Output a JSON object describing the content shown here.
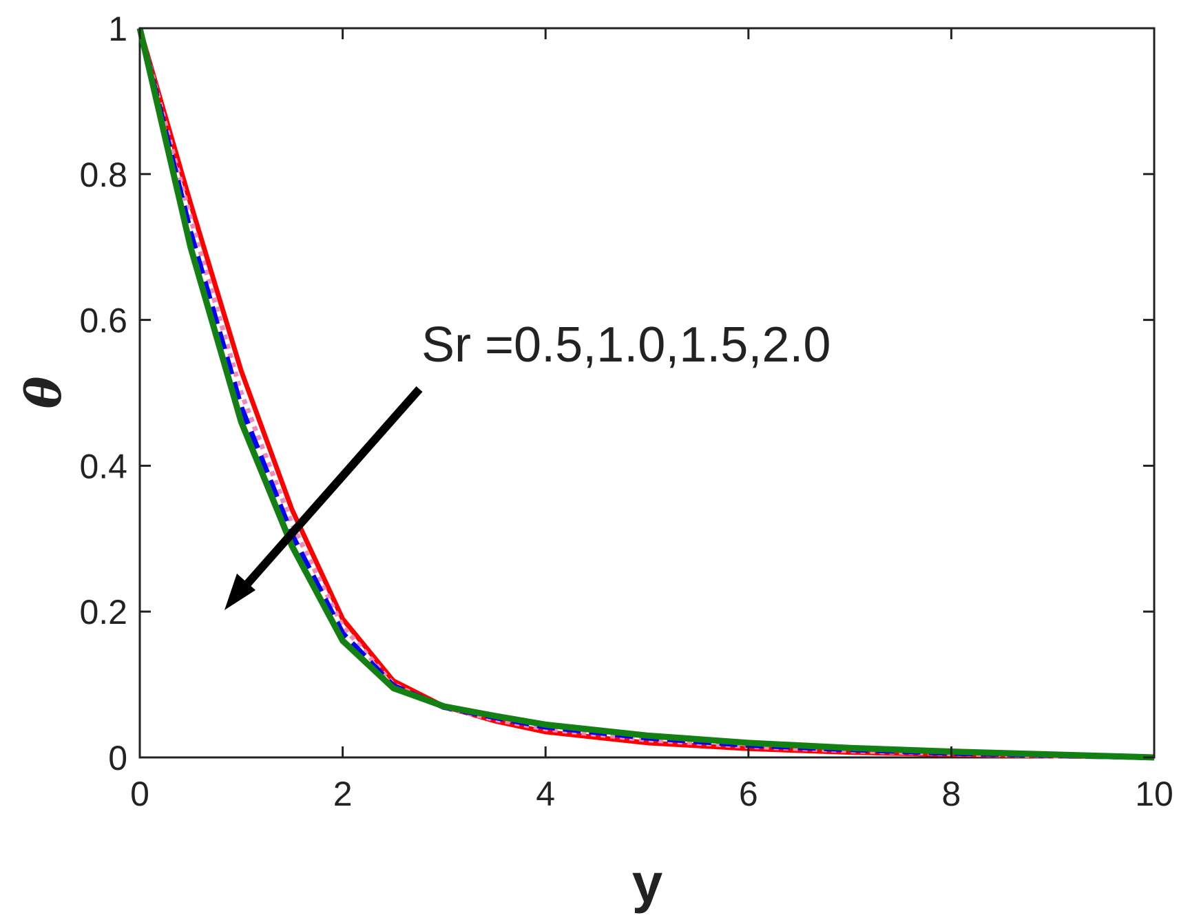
{
  "chart_data": {
    "type": "line",
    "x": [
      0,
      0.5,
      1,
      1.5,
      2,
      2.5,
      3,
      3.5,
      4,
      5,
      6,
      7,
      8,
      9,
      10
    ],
    "series": [
      {
        "color": "#ff0000",
        "style": "solid",
        "values": [
          1,
          0.76,
          0.53,
          0.34,
          0.19,
          0.105,
          0.07,
          0.05,
          0.035,
          0.02,
          0.012,
          0.007,
          0.004,
          0.002,
          0
        ]
      },
      {
        "color": "#f08ab8",
        "style": "dotted",
        "values": [
          1,
          0.74,
          0.5,
          0.32,
          0.18,
          0.1,
          0.068,
          0.052,
          0.039,
          0.024,
          0.015,
          0.009,
          0.005,
          0.002,
          0
        ]
      },
      {
        "color": "#0000ff",
        "style": "dashed",
        "values": [
          1,
          0.72,
          0.48,
          0.305,
          0.17,
          0.098,
          0.069,
          0.055,
          0.042,
          0.027,
          0.017,
          0.011,
          0.006,
          0.003,
          0
        ]
      },
      {
        "color": "#138013",
        "style": "solid",
        "values": [
          1,
          0.7,
          0.46,
          0.29,
          0.16,
          0.095,
          0.07,
          0.057,
          0.045,
          0.03,
          0.02,
          0.013,
          0.008,
          0.004,
          0
        ]
      }
    ],
    "xlabel": "y",
    "ylabel": "θ",
    "annotation": "Sr =0.5,1.0,1.5,2.0",
    "xlim": [
      0,
      10
    ],
    "ylim": [
      0,
      1
    ],
    "xticks": [
      0,
      2,
      4,
      6,
      8,
      10
    ],
    "yticks": [
      0,
      0.2,
      0.4,
      0.6,
      0.8,
      1
    ]
  }
}
